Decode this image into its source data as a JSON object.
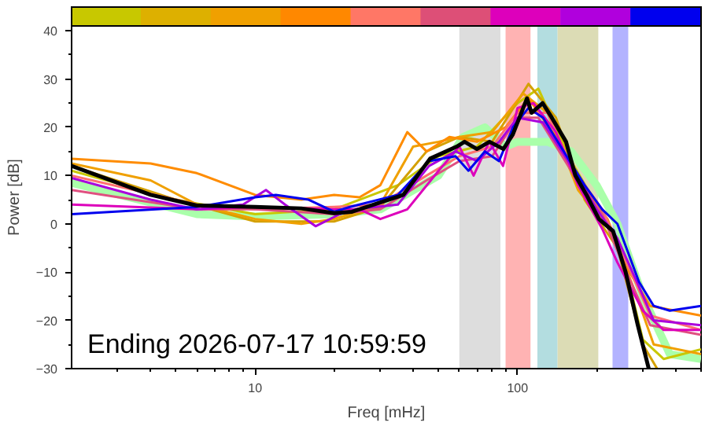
{
  "chart_data": {
    "type": "line",
    "xlabel": "Freq [mHz]",
    "ylabel": "Power [dB]",
    "log": "x",
    "grid": false,
    "xlim": [
      2,
      500
    ],
    "ylim": [
      -30,
      41
    ],
    "xticks": [
      {
        "value": 3,
        "label": null
      },
      {
        "value": 4,
        "label": null
      },
      {
        "value": 5,
        "label": null
      },
      {
        "value": 6,
        "label": null
      },
      {
        "value": 7,
        "label": null
      },
      {
        "value": 8,
        "label": null
      },
      {
        "value": 9,
        "label": null
      },
      {
        "value": 10,
        "label": "10"
      },
      {
        "value": 20,
        "label": null
      },
      {
        "value": 30,
        "label": null
      },
      {
        "value": 40,
        "label": null
      },
      {
        "value": 50,
        "label": null
      },
      {
        "value": 60,
        "label": null
      },
      {
        "value": 70,
        "label": null
      },
      {
        "value": 80,
        "label": null
      },
      {
        "value": 90,
        "label": null
      },
      {
        "value": 100,
        "label": "100"
      },
      {
        "value": 200,
        "label": null
      },
      {
        "value": 300,
        "label": null
      },
      {
        "value": 400,
        "label": null
      },
      {
        "value": 500,
        "label": null
      }
    ],
    "yticks": [
      {
        "value": -30,
        "label": "−30"
      },
      {
        "value": -25,
        "label": null
      },
      {
        "value": -20,
        "label": "−20"
      },
      {
        "value": -15,
        "label": null
      },
      {
        "value": -10,
        "label": "−10"
      },
      {
        "value": -5,
        "label": null
      },
      0,
      {
        "value": 5,
        "label": null
      },
      10,
      {
        "value": 15,
        "label": null
      },
      20,
      {
        "value": 25,
        "label": null
      },
      30,
      {
        "value": 35,
        "label": null
      },
      40
    ],
    "bands": [
      {
        "axis": "x",
        "from": 60,
        "to": 86,
        "label": null,
        "color": "#dddddd"
      },
      {
        "axis": "x",
        "from": 90,
        "to": 112,
        "label": null,
        "color": "#ffb3b3"
      },
      {
        "axis": "x",
        "from": 119,
        "to": 142,
        "label": null,
        "color": "#b3dde0"
      },
      {
        "axis": "x",
        "from": 142,
        "to": 203,
        "label": null,
        "color": "#dcdcb5"
      },
      {
        "axis": "x",
        "from": 230,
        "to": 264,
        "label": null,
        "color": "#b3b3ff"
      }
    ],
    "annotations": [
      "Ending 2026-07-17 10:59:59"
    ],
    "series": [
      {
        "color": "#aaffaa",
        "x": [
          2,
          6,
          10,
          20,
          30,
          50,
          62,
          75,
          90,
          100,
          130,
          160,
          200,
          240,
          300,
          380,
          500
        ],
        "values": [
          8.5,
          2,
          1.5,
          2,
          3,
          10,
          18,
          20,
          16,
          17,
          17,
          15,
          8,
          0,
          -15,
          -27,
          -28
        ]
      },
      {
        "color": "#c8c800",
        "x": [
          2,
          5,
          10,
          20,
          35,
          50,
          70,
          100,
          120,
          160,
          210,
          260,
          300,
          360,
          500
        ],
        "values": [
          11,
          5,
          2,
          3,
          8,
          14,
          16,
          25,
          28,
          13,
          2,
          -10,
          -24,
          -28,
          -26
        ]
      },
      {
        "color": "#d4a000",
        "x": [
          2,
          5,
          10,
          20,
          30,
          45,
          60,
          80,
          110,
          140,
          180,
          240,
          300,
          340
        ],
        "values": [
          12,
          5,
          0.5,
          0.5,
          3.5,
          15,
          18,
          17,
          29,
          22,
          5,
          -5,
          -25,
          -30
        ]
      },
      {
        "color": "#f0a000",
        "x": [
          2,
          4,
          6,
          10,
          15,
          20,
          30,
          40,
          50,
          60,
          80,
          105,
          130,
          170,
          230,
          280,
          330,
          500
        ],
        "values": [
          12.5,
          9,
          4,
          1,
          0,
          1,
          4,
          16,
          17,
          18,
          19,
          27,
          23,
          7,
          -2,
          -14,
          -25,
          -27
        ]
      },
      {
        "color": "#ff8c00",
        "x": [
          2,
          4,
          6,
          10,
          15,
          20,
          25,
          30,
          38,
          45,
          55,
          70,
          90,
          110,
          140,
          170,
          220,
          260,
          320,
          500
        ],
        "values": [
          13.5,
          12.5,
          10.5,
          6,
          5,
          6,
          5.5,
          8,
          19,
          15,
          18,
          17,
          20,
          26,
          18,
          9,
          1,
          -9,
          -17,
          -19
        ]
      },
      {
        "color": "#ff7070",
        "x": [
          2,
          6,
          10,
          20,
          30,
          45,
          60,
          80,
          100,
          130,
          160,
          210,
          260,
          320,
          500
        ],
        "values": [
          10,
          4,
          3,
          3.5,
          4,
          10,
          14,
          16,
          23,
          23,
          12,
          3,
          -8,
          -19,
          -22
        ]
      },
      {
        "color": "#e05080",
        "x": [
          2,
          6,
          10,
          20,
          30,
          45,
          60,
          80,
          100,
          120,
          160,
          210,
          260,
          320,
          500
        ],
        "values": [
          7,
          3,
          3,
          2,
          3,
          9,
          13,
          14,
          22,
          22,
          11,
          2,
          -10,
          -21,
          -23
        ]
      },
      {
        "color": "#dd00bb",
        "x": [
          2,
          6,
          10,
          20,
          25,
          30,
          38,
          50,
          60,
          68,
          78,
          88,
          100,
          115,
          140,
          170,
          210,
          240,
          300,
          360,
          500
        ],
        "values": [
          4,
          3,
          3.5,
          3,
          3,
          1,
          3,
          11,
          16,
          10,
          17,
          12,
          24,
          25,
          19,
          8,
          -1,
          -8,
          -18,
          -22,
          -22
        ]
      },
      {
        "color": "#aa00dd",
        "x": [
          2,
          4,
          6,
          9,
          11,
          13,
          17,
          21,
          24,
          35,
          46,
          58,
          70,
          85,
          100,
          125,
          160,
          200,
          240,
          290,
          330,
          500
        ],
        "values": [
          9.5,
          5,
          3,
          4,
          7,
          4,
          -0.5,
          2,
          3,
          4,
          12,
          15,
          13,
          17,
          22,
          21,
          12,
          3,
          -3,
          -13,
          -20,
          -21
        ]
      },
      {
        "color": "#0000ee",
        "x": [
          2,
          6,
          10,
          12,
          16,
          20,
          23,
          35,
          46,
          58,
          65,
          75,
          85,
          96,
          110,
          125,
          150,
          180,
          210,
          240,
          290,
          330,
          380,
          500
        ],
        "values": [
          2,
          3.5,
          5.5,
          6,
          5,
          2.5,
          3.5,
          6,
          13,
          14,
          11,
          15,
          13,
          20,
          24,
          22,
          15,
          8,
          3,
          0,
          -12,
          -17,
          -18,
          -17
        ]
      },
      {
        "color": "#000000",
        "x": [
          2,
          3,
          4,
          6,
          10,
          15,
          20,
          23.4,
          36.7,
          46.4,
          58.6,
          62.8,
          70,
          78.2,
          88.3,
          95.9,
          108.6,
          113,
          124.6,
          135,
          153,
          166,
          183,
          204,
          231,
          258,
          287,
          316
        ],
        "values": [
          12,
          8.5,
          6,
          3.8,
          3.5,
          3.2,
          2.2,
          2.5,
          6,
          13.5,
          16,
          17,
          15.5,
          17,
          15.5,
          18.5,
          26,
          23,
          25,
          22,
          17,
          10,
          6,
          1,
          -1.5,
          -10,
          -21,
          -30
        ]
      }
    ]
  }
}
